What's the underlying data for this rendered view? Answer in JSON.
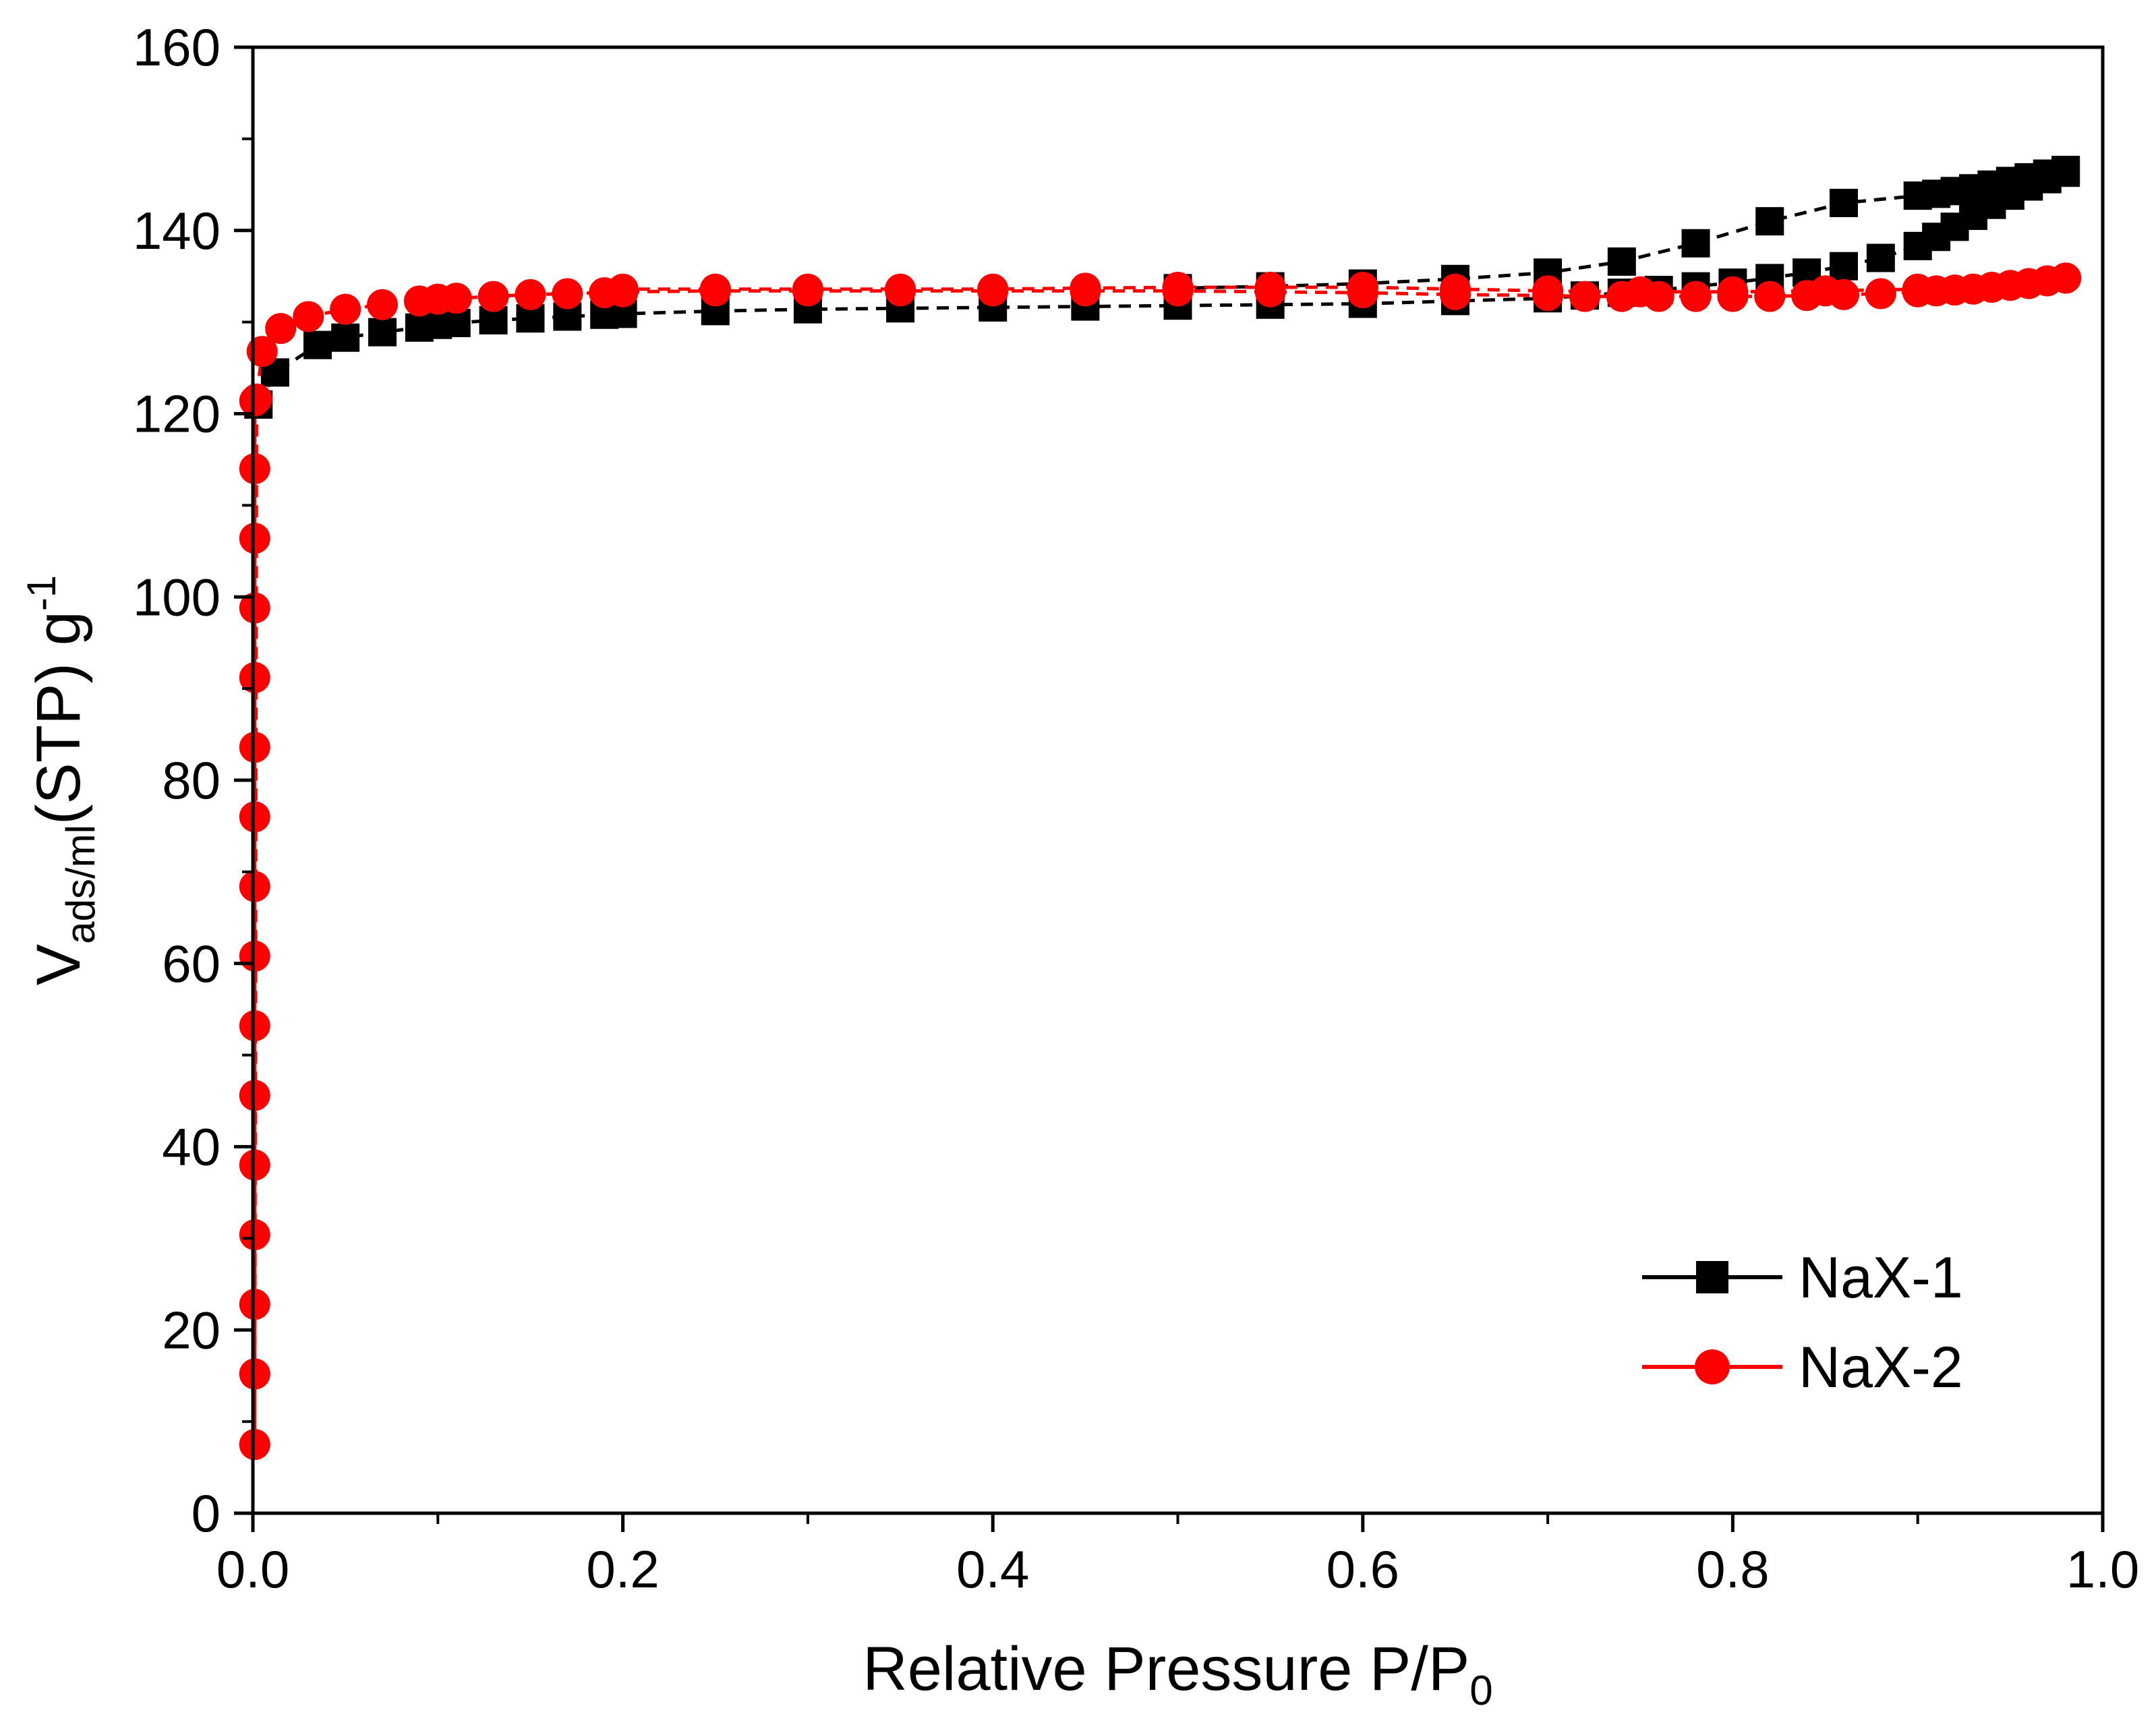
{
  "chart_data": {
    "type": "scatter",
    "title": "",
    "xlabel": {
      "main": "Relative Pressure P/P",
      "sub": "0"
    },
    "ylabel": {
      "main": "V",
      "sub": "ads/ml",
      "rest": "(STP) g",
      "sup": "-1"
    },
    "xlim": [
      0.0,
      1.0
    ],
    "ylim": [
      0,
      160
    ],
    "x_ticks": [
      0.0,
      0.2,
      0.4,
      0.6,
      0.8,
      1.0
    ],
    "x_tick_labels": [
      "0.0",
      "0.2",
      "0.4",
      "0.6",
      "0.8",
      "1.0"
    ],
    "y_ticks": [
      0,
      20,
      40,
      60,
      80,
      100,
      120,
      140,
      160
    ],
    "y_tick_labels": [
      "0",
      "20",
      "40",
      "60",
      "80",
      "100",
      "120",
      "140",
      "160"
    ],
    "grid": false,
    "legend_position": "bottom-right",
    "series": [
      {
        "name": "NaX-1",
        "color": "#000000",
        "marker": "square",
        "adsorption": {
          "x": [
            0.003,
            0.012,
            0.035,
            0.05,
            0.07,
            0.09,
            0.1,
            0.11,
            0.13,
            0.15,
            0.17,
            0.19,
            0.2,
            0.25,
            0.3,
            0.35,
            0.4,
            0.45,
            0.5,
            0.55,
            0.6,
            0.65,
            0.7,
            0.72,
            0.74,
            0.76,
            0.78,
            0.8,
            0.82,
            0.84,
            0.86,
            0.88,
            0.9,
            0.91,
            0.92,
            0.93,
            0.94,
            0.95,
            0.96,
            0.97,
            0.98
          ],
          "y": [
            121,
            124.5,
            127.5,
            128.3,
            128.9,
            129.4,
            129.7,
            129.9,
            130.2,
            130.4,
            130.6,
            130.8,
            130.9,
            131.2,
            131.4,
            131.5,
            131.6,
            131.7,
            131.8,
            131.9,
            132.0,
            132.3,
            132.6,
            132.9,
            133.2,
            133.5,
            133.9,
            134.3,
            134.8,
            135.4,
            136.1,
            137.0,
            138.3,
            139.3,
            140.4,
            141.6,
            142.8,
            143.8,
            144.8,
            145.6,
            146.3
          ]
        },
        "desorption": {
          "x": [
            0.98,
            0.97,
            0.96,
            0.95,
            0.94,
            0.93,
            0.92,
            0.91,
            0.9,
            0.86,
            0.82,
            0.78,
            0.74,
            0.7,
            0.65,
            0.6,
            0.55,
            0.5
          ],
          "y": [
            146.6,
            146.2,
            145.8,
            145.4,
            145.0,
            144.6,
            144.3,
            144.0,
            143.8,
            143.0,
            141.0,
            138.6,
            136.6,
            135.4,
            134.7,
            134.2,
            133.9,
            133.7
          ]
        }
      },
      {
        "name": "NaX-2",
        "color": "#ff0000",
        "marker": "circle",
        "adsorption": {
          "x": [
            0.001,
            0.001,
            0.001,
            0.001,
            0.001,
            0.001,
            0.001,
            0.001,
            0.001,
            0.001,
            0.001,
            0.001,
            0.001,
            0.001,
            0.001,
            0.001,
            0.001,
            0.001,
            0.002,
            0.005,
            0.015,
            0.03,
            0.05,
            0.07,
            0.09,
            0.1,
            0.11,
            0.13,
            0.15,
            0.17,
            0.19,
            0.2,
            0.25,
            0.3,
            0.35,
            0.4,
            0.45,
            0.5,
            0.55,
            0.6,
            0.65,
            0.7,
            0.72,
            0.74,
            0.76,
            0.78,
            0.8,
            0.82,
            0.84,
            0.86,
            0.88,
            0.9,
            0.91,
            0.92,
            0.93,
            0.94,
            0.95,
            0.96,
            0.97,
            0.98
          ],
          "y": [
            7.5,
            15.2,
            22.8,
            30.4,
            38.0,
            45.6,
            53.2,
            60.8,
            68.4,
            76.0,
            83.6,
            91.2,
            98.8,
            106.4,
            114.0,
            121.4,
            7.5,
            15.2,
            121.6,
            126.8,
            129.3,
            130.6,
            131.4,
            131.9,
            132.3,
            132.5,
            132.6,
            132.8,
            133.0,
            133.1,
            133.2,
            133.3,
            133.4,
            133.4,
            133.4,
            133.4,
            133.4,
            133.4,
            133.3,
            133.2,
            133.0,
            132.9,
            132.8,
            132.8,
            132.8,
            132.8,
            132.8,
            132.8,
            132.9,
            133.0,
            133.1,
            133.3,
            133.4,
            133.5,
            133.6,
            133.8,
            134.0,
            134.2,
            134.5,
            134.8
          ]
        },
        "desorption": {
          "x": [
            0.98,
            0.9,
            0.85,
            0.8,
            0.75,
            0.7,
            0.65,
            0.6,
            0.55,
            0.5,
            0.45,
            0.4,
            0.35,
            0.3,
            0.25,
            0.2
          ],
          "y": [
            134.8,
            133.6,
            133.4,
            133.3,
            133.3,
            133.4,
            133.6,
            133.8,
            133.8,
            133.8,
            133.7,
            133.6,
            133.6,
            133.6,
            133.6,
            133.6
          ]
        }
      }
    ]
  }
}
